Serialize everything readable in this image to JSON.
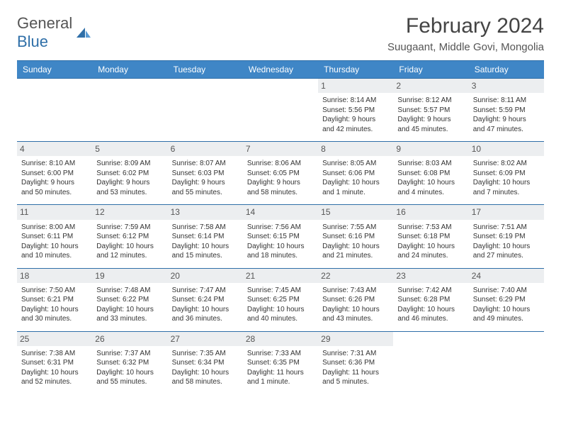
{
  "brand": {
    "text1": "General",
    "text2": "Blue"
  },
  "title": "February 2024",
  "location": "Suugaant, Middle Govi, Mongolia",
  "colors": {
    "header_bg": "#3f86c6",
    "border": "#2f6fa8",
    "daynum_bg": "#eceef0",
    "text": "#333333",
    "title_color": "#444444"
  },
  "daysOfWeek": [
    "Sunday",
    "Monday",
    "Tuesday",
    "Wednesday",
    "Thursday",
    "Friday",
    "Saturday"
  ],
  "leadingBlanks": 4,
  "days": [
    {
      "n": 1,
      "sunrise": "8:14 AM",
      "sunset": "5:56 PM",
      "daylight": "9 hours and 42 minutes."
    },
    {
      "n": 2,
      "sunrise": "8:12 AM",
      "sunset": "5:57 PM",
      "daylight": "9 hours and 45 minutes."
    },
    {
      "n": 3,
      "sunrise": "8:11 AM",
      "sunset": "5:59 PM",
      "daylight": "9 hours and 47 minutes."
    },
    {
      "n": 4,
      "sunrise": "8:10 AM",
      "sunset": "6:00 PM",
      "daylight": "9 hours and 50 minutes."
    },
    {
      "n": 5,
      "sunrise": "8:09 AM",
      "sunset": "6:02 PM",
      "daylight": "9 hours and 53 minutes."
    },
    {
      "n": 6,
      "sunrise": "8:07 AM",
      "sunset": "6:03 PM",
      "daylight": "9 hours and 55 minutes."
    },
    {
      "n": 7,
      "sunrise": "8:06 AM",
      "sunset": "6:05 PM",
      "daylight": "9 hours and 58 minutes."
    },
    {
      "n": 8,
      "sunrise": "8:05 AM",
      "sunset": "6:06 PM",
      "daylight": "10 hours and 1 minute."
    },
    {
      "n": 9,
      "sunrise": "8:03 AM",
      "sunset": "6:08 PM",
      "daylight": "10 hours and 4 minutes."
    },
    {
      "n": 10,
      "sunrise": "8:02 AM",
      "sunset": "6:09 PM",
      "daylight": "10 hours and 7 minutes."
    },
    {
      "n": 11,
      "sunrise": "8:00 AM",
      "sunset": "6:11 PM",
      "daylight": "10 hours and 10 minutes."
    },
    {
      "n": 12,
      "sunrise": "7:59 AM",
      "sunset": "6:12 PM",
      "daylight": "10 hours and 12 minutes."
    },
    {
      "n": 13,
      "sunrise": "7:58 AM",
      "sunset": "6:14 PM",
      "daylight": "10 hours and 15 minutes."
    },
    {
      "n": 14,
      "sunrise": "7:56 AM",
      "sunset": "6:15 PM",
      "daylight": "10 hours and 18 minutes."
    },
    {
      "n": 15,
      "sunrise": "7:55 AM",
      "sunset": "6:16 PM",
      "daylight": "10 hours and 21 minutes."
    },
    {
      "n": 16,
      "sunrise": "7:53 AM",
      "sunset": "6:18 PM",
      "daylight": "10 hours and 24 minutes."
    },
    {
      "n": 17,
      "sunrise": "7:51 AM",
      "sunset": "6:19 PM",
      "daylight": "10 hours and 27 minutes."
    },
    {
      "n": 18,
      "sunrise": "7:50 AM",
      "sunset": "6:21 PM",
      "daylight": "10 hours and 30 minutes."
    },
    {
      "n": 19,
      "sunrise": "7:48 AM",
      "sunset": "6:22 PM",
      "daylight": "10 hours and 33 minutes."
    },
    {
      "n": 20,
      "sunrise": "7:47 AM",
      "sunset": "6:24 PM",
      "daylight": "10 hours and 36 minutes."
    },
    {
      "n": 21,
      "sunrise": "7:45 AM",
      "sunset": "6:25 PM",
      "daylight": "10 hours and 40 minutes."
    },
    {
      "n": 22,
      "sunrise": "7:43 AM",
      "sunset": "6:26 PM",
      "daylight": "10 hours and 43 minutes."
    },
    {
      "n": 23,
      "sunrise": "7:42 AM",
      "sunset": "6:28 PM",
      "daylight": "10 hours and 46 minutes."
    },
    {
      "n": 24,
      "sunrise": "7:40 AM",
      "sunset": "6:29 PM",
      "daylight": "10 hours and 49 minutes."
    },
    {
      "n": 25,
      "sunrise": "7:38 AM",
      "sunset": "6:31 PM",
      "daylight": "10 hours and 52 minutes."
    },
    {
      "n": 26,
      "sunrise": "7:37 AM",
      "sunset": "6:32 PM",
      "daylight": "10 hours and 55 minutes."
    },
    {
      "n": 27,
      "sunrise": "7:35 AM",
      "sunset": "6:34 PM",
      "daylight": "10 hours and 58 minutes."
    },
    {
      "n": 28,
      "sunrise": "7:33 AM",
      "sunset": "6:35 PM",
      "daylight": "11 hours and 1 minute."
    },
    {
      "n": 29,
      "sunrise": "7:31 AM",
      "sunset": "6:36 PM",
      "daylight": "11 hours and 5 minutes."
    }
  ],
  "labels": {
    "sunrise": "Sunrise: ",
    "sunset": "Sunset: ",
    "daylight": "Daylight: "
  }
}
